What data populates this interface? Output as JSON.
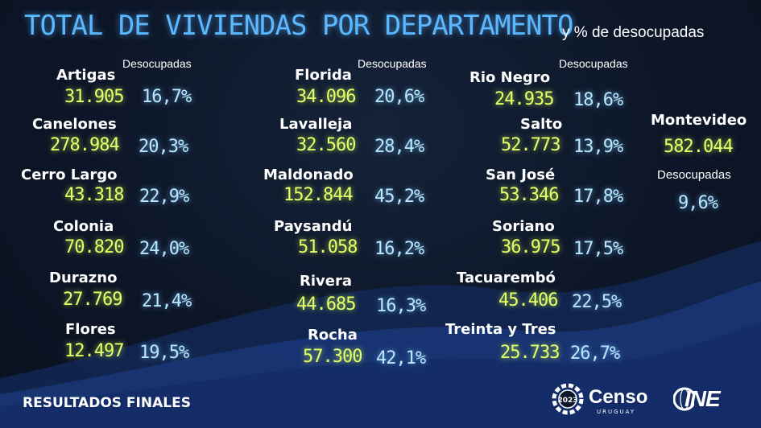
{
  "title": "TOTAL DE VIVIENDAS POR DEPARTAMENTO",
  "subtitle": "y % de desocupadas",
  "column_header": "Desocupadas",
  "columns": [
    [
      {
        "name": "Artigas",
        "total": "31.905",
        "pct": "16,7%"
      },
      {
        "name": "Canelones",
        "total": "278.984",
        "pct": "20,3%"
      },
      {
        "name": "Cerro Largo",
        "total": "43.318",
        "pct": "22,9%"
      },
      {
        "name": "Colonia",
        "total": "70.820",
        "pct": "24,0%"
      },
      {
        "name": "Durazno",
        "total": "27.769",
        "pct": "21,4%"
      },
      {
        "name": "Flores",
        "total": "12.497",
        "pct": "19,5%"
      }
    ],
    [
      {
        "name": "Florida",
        "total": "34.096",
        "pct": "20,6%"
      },
      {
        "name": "Lavalleja",
        "total": "32.560",
        "pct": "28,4%"
      },
      {
        "name": "Maldonado",
        "total": "152.844",
        "pct": "45,2%"
      },
      {
        "name": "Paysandú",
        "total": "51.058",
        "pct": "16,2%"
      },
      {
        "name": "Rivera",
        "total": "44.685",
        "pct": "16,3%"
      },
      {
        "name": "Rocha",
        "total": "57.300",
        "pct": "42,1%"
      }
    ],
    [
      {
        "name": "Rio Negro",
        "total": "24.935",
        "pct": "18,6%"
      },
      {
        "name": "Salto",
        "total": "52.773",
        "pct": "13,9%"
      },
      {
        "name": "San José",
        "total": "53.346",
        "pct": "17,8%"
      },
      {
        "name": "Soriano",
        "total": "36.975",
        "pct": "17,5%"
      },
      {
        "name": "Tacuarembó",
        "total": "45.406",
        "pct": "22,5%"
      },
      {
        "name": "Treinta y Tres",
        "total": "25.733",
        "pct": "26,7%"
      }
    ]
  ],
  "montevideo": {
    "name": "Montevideo",
    "total": "582.044",
    "label": "Desocupadas",
    "pct": "9,6%"
  },
  "footer": "RESULTADOS FINALES",
  "logos": {
    "censo": {
      "text": "Censo",
      "sub": "URUGUAY",
      "year": "2023"
    },
    "ine": {
      "text": "INE"
    }
  }
}
